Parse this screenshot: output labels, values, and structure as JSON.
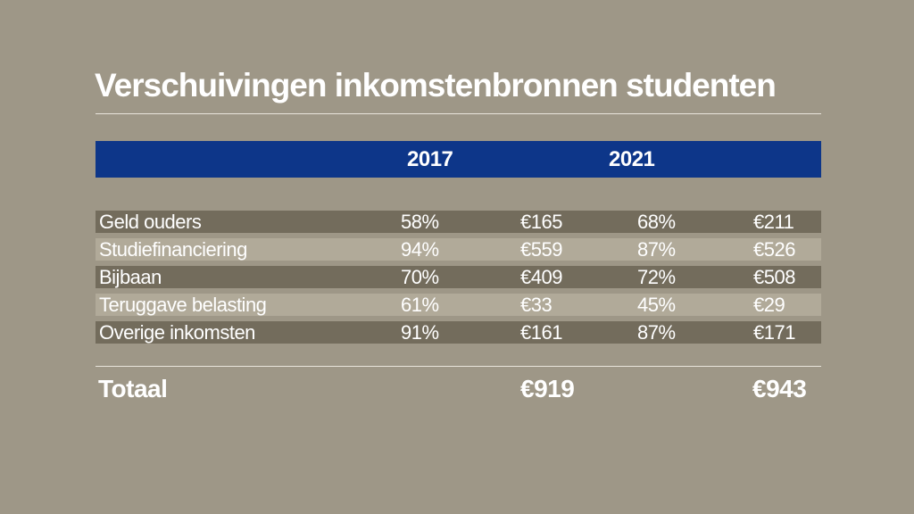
{
  "title": "Verschuivingen inkomstenbronnen studenten",
  "chart_data": {
    "type": "table",
    "title": "Verschuivingen inkomstenbronnen studenten",
    "columns": [
      "2017",
      "2021"
    ],
    "rows": [
      {
        "label": "Geld ouders",
        "pct_2017": "58%",
        "amount_2017": "€165",
        "pct_2021": "68%",
        "amount_2021": "€211",
        "shade": "dark"
      },
      {
        "label": "Studiefinanciering",
        "pct_2017": "94%",
        "amount_2017": "€559",
        "pct_2021": "87%",
        "amount_2021": "€526",
        "shade": "light"
      },
      {
        "label": "Bijbaan",
        "pct_2017": "70%",
        "amount_2017": "€409",
        "pct_2021": "72%",
        "amount_2021": "€508",
        "shade": "dark"
      },
      {
        "label": "Teruggave belasting",
        "pct_2017": "61%",
        "amount_2017": "€33",
        "pct_2021": "45%",
        "amount_2021": "€29",
        "shade": "light"
      },
      {
        "label": "Overige inkomsten",
        "pct_2017": "91%",
        "amount_2017": "€161",
        "pct_2021": "87%",
        "amount_2021": "€171",
        "shade": "dark"
      }
    ],
    "total": {
      "label": "Totaal",
      "amount_2017": "€919",
      "amount_2021": "€943"
    }
  },
  "colors": {
    "background": "#9e9787",
    "header_bar": "#0d3689",
    "row_dark": "#736c5c",
    "row_light": "#b1aa99",
    "text": "#ffffff"
  }
}
